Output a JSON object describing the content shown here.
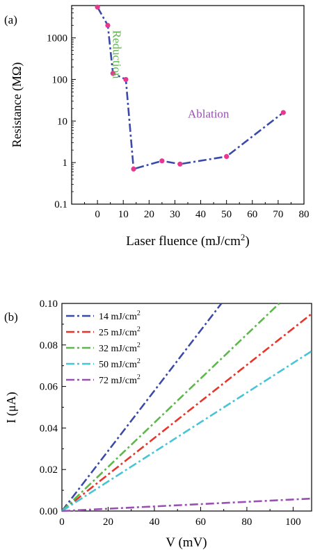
{
  "chart_data": [
    {
      "panel_label": "(a)",
      "type": "line",
      "xlabel": "Laser fluence (mJ/cm",
      "xlabel_sup": "2",
      "xlabel_end": ")",
      "ylabel": "Resistance (MΩ)",
      "xlim": [
        -10,
        80
      ],
      "ylim": [
        0.1,
        6000
      ],
      "yscale": "log",
      "xticks": [
        0,
        10,
        20,
        30,
        40,
        50,
        60,
        70,
        80
      ],
      "yticks": [
        0.1,
        1,
        10,
        100,
        1000
      ],
      "ytick_labels": [
        "0.1",
        "1",
        "10",
        "100",
        "1000"
      ],
      "x": [
        0,
        4,
        6,
        11,
        14,
        25,
        32,
        50,
        72
      ],
      "y": [
        5500,
        2000,
        140,
        100,
        0.7,
        1.1,
        0.92,
        1.4,
        16
      ],
      "line_color": "#3a4aa8",
      "marker_color": "#e8378f",
      "annotations": [
        {
          "text": "Reduction",
          "color": "#5cb84a",
          "x": 6,
          "y": 400,
          "rotation": 90
        },
        {
          "text": "Ablation",
          "color": "#9b4fb5",
          "x": 43,
          "y": 12,
          "rotation": 0
        }
      ]
    },
    {
      "panel_label": "(b)",
      "type": "line",
      "xlabel": "V (mV)",
      "ylabel": "I (μA)",
      "xlim": [
        0,
        108
      ],
      "ylim": [
        0,
        0.1
      ],
      "xticks": [
        0,
        20,
        40,
        60,
        80,
        100
      ],
      "yticks": [
        0.0,
        0.02,
        0.04,
        0.06,
        0.08,
        0.1
      ],
      "ytick_labels": [
        "0.00",
        "0.02",
        "0.04",
        "0.06",
        "0.08",
        "0.10"
      ],
      "series": [
        {
          "name": "14 mJ/cm",
          "sup": "2",
          "color": "#3a4aa8",
          "x": [
            0,
            69
          ],
          "y": [
            0,
            0.1
          ]
        },
        {
          "name": "25 mJ/cm",
          "sup": "2",
          "color": "#e8352b",
          "x": [
            0,
            108
          ],
          "y": [
            0,
            0.095
          ]
        },
        {
          "name": "32 mJ/cm",
          "sup": "2",
          "color": "#5cb84a",
          "x": [
            0,
            94
          ],
          "y": [
            0,
            0.1
          ]
        },
        {
          "name": "50 mJ/cm",
          "sup": "2",
          "color": "#48c4d8",
          "x": [
            0,
            108
          ],
          "y": [
            0,
            0.077
          ]
        },
        {
          "name": "72 mJ/cm",
          "sup": "2",
          "color": "#9b4fb5",
          "x": [
            0,
            108
          ],
          "y": [
            0,
            0.006
          ]
        }
      ],
      "legend_position": "top-left"
    }
  ]
}
